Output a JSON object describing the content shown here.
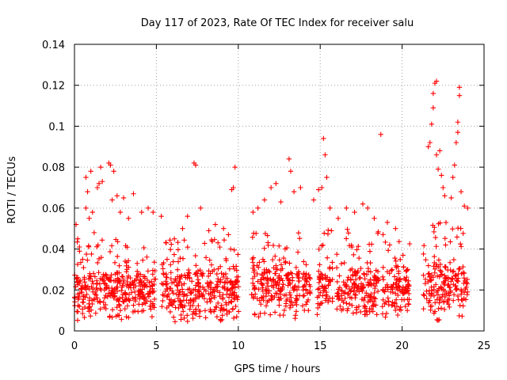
{
  "chart_data": {
    "type": "scatter",
    "title": "Day 117 of 2023, Rate Of TEC Index for receiver salu",
    "xlabel": "GPS time / hours",
    "ylabel": "ROTI / TECUs",
    "xlim": [
      0,
      25
    ],
    "ylim": [
      0,
      0.14
    ],
    "xticks": [
      0,
      5,
      10,
      15,
      20,
      25
    ],
    "xtick_labels": [
      "0",
      "5",
      "10",
      "15",
      "20",
      "25"
    ],
    "yticks": [
      0,
      0.02,
      0.04,
      0.06,
      0.08,
      0.1,
      0.12,
      0.14
    ],
    "ytick_labels": [
      "0",
      "0.02",
      "0.04",
      "0.06",
      "0.08",
      "0.1",
      "0.12",
      "0.14"
    ],
    "grid": true,
    "marker": "plus",
    "color": "#ff0000",
    "series": [
      {
        "name": "ROTI",
        "points": [
          [
            0.1,
            0.052
          ],
          [
            0.2,
            0.045
          ],
          [
            0.5,
            0.035
          ],
          [
            0.7,
            0.06
          ],
          [
            0.7,
            0.075
          ],
          [
            0.8,
            0.068
          ],
          [
            0.9,
            0.055
          ],
          [
            1.0,
            0.078
          ],
          [
            1.1,
            0.058
          ],
          [
            1.2,
            0.048
          ],
          [
            1.4,
            0.07
          ],
          [
            1.5,
            0.072
          ],
          [
            1.6,
            0.08
          ],
          [
            1.7,
            0.073
          ],
          [
            2.1,
            0.082
          ],
          [
            2.2,
            0.081
          ],
          [
            2.3,
            0.064
          ],
          [
            2.4,
            0.078
          ],
          [
            2.6,
            0.066
          ],
          [
            2.8,
            0.058
          ],
          [
            3.0,
            0.065
          ],
          [
            3.3,
            0.055
          ],
          [
            3.6,
            0.067
          ],
          [
            4.1,
            0.058
          ],
          [
            4.5,
            0.06
          ],
          [
            4.8,
            0.058
          ],
          [
            5.3,
            0.056
          ],
          [
            5.6,
            0.043
          ],
          [
            6.1,
            0.045
          ],
          [
            6.6,
            0.05
          ],
          [
            6.9,
            0.056
          ],
          [
            7.3,
            0.082
          ],
          [
            7.4,
            0.081
          ],
          [
            7.7,
            0.06
          ],
          [
            8.2,
            0.049
          ],
          [
            8.6,
            0.052
          ],
          [
            9.1,
            0.05
          ],
          [
            9.4,
            0.047
          ],
          [
            9.6,
            0.069
          ],
          [
            9.7,
            0.07
          ],
          [
            9.8,
            0.08
          ],
          [
            10.9,
            0.058
          ],
          [
            11.2,
            0.06
          ],
          [
            11.6,
            0.064
          ],
          [
            12.0,
            0.07
          ],
          [
            12.3,
            0.072
          ],
          [
            12.6,
            0.063
          ],
          [
            13.1,
            0.084
          ],
          [
            13.2,
            0.078
          ],
          [
            13.4,
            0.068
          ],
          [
            13.8,
            0.07
          ],
          [
            14.6,
            0.064
          ],
          [
            14.9,
            0.069
          ],
          [
            15.1,
            0.07
          ],
          [
            15.2,
            0.094
          ],
          [
            15.3,
            0.086
          ],
          [
            15.4,
            0.075
          ],
          [
            15.6,
            0.06
          ],
          [
            16.1,
            0.055
          ],
          [
            16.6,
            0.06
          ],
          [
            17.1,
            0.058
          ],
          [
            17.6,
            0.062
          ],
          [
            17.9,
            0.06
          ],
          [
            18.3,
            0.055
          ],
          [
            18.7,
            0.096
          ],
          [
            19.1,
            0.053
          ],
          [
            19.6,
            0.05
          ],
          [
            21.6,
            0.09
          ],
          [
            21.7,
            0.092
          ],
          [
            21.8,
            0.101
          ],
          [
            21.9,
            0.109
          ],
          [
            21.9,
            0.116
          ],
          [
            22.0,
            0.121
          ],
          [
            22.1,
            0.122
          ],
          [
            22.1,
            0.086
          ],
          [
            22.2,
            0.079
          ],
          [
            22.3,
            0.088
          ],
          [
            22.4,
            0.076
          ],
          [
            22.5,
            0.07
          ],
          [
            22.6,
            0.066
          ],
          [
            23.0,
            0.065
          ],
          [
            23.1,
            0.075
          ],
          [
            23.2,
            0.081
          ],
          [
            23.3,
            0.092
          ],
          [
            23.4,
            0.097
          ],
          [
            23.4,
            0.102
          ],
          [
            23.5,
            0.115
          ],
          [
            23.5,
            0.119
          ],
          [
            23.6,
            0.068
          ],
          [
            23.8,
            0.061
          ],
          [
            24.0,
            0.06
          ]
        ],
        "dense_bands": [
          {
            "x_start": 0.0,
            "x_end": 4.95,
            "y_min": 0.005,
            "y_max": 0.045,
            "y_center": 0.02
          },
          {
            "x_start": 5.3,
            "x_end": 10.05,
            "y_min": 0.004,
            "y_max": 0.045,
            "y_center": 0.02
          },
          {
            "x_start": 10.8,
            "x_end": 13.75,
            "y_min": 0.006,
            "y_max": 0.048,
            "y_center": 0.021
          },
          {
            "x_start": 13.9,
            "x_end": 14.4,
            "y_min": 0.01,
            "y_max": 0.035,
            "y_center": 0.02
          },
          {
            "x_start": 14.8,
            "x_end": 15.75,
            "y_min": 0.008,
            "y_max": 0.05,
            "y_center": 0.022
          },
          {
            "x_start": 16.0,
            "x_end": 18.6,
            "y_min": 0.008,
            "y_max": 0.05,
            "y_center": 0.02
          },
          {
            "x_start": 18.8,
            "x_end": 20.5,
            "y_min": 0.006,
            "y_max": 0.048,
            "y_center": 0.02
          },
          {
            "x_start": 21.3,
            "x_end": 24.0,
            "y_min": 0.005,
            "y_max": 0.06,
            "y_center": 0.022
          }
        ]
      }
    ]
  }
}
